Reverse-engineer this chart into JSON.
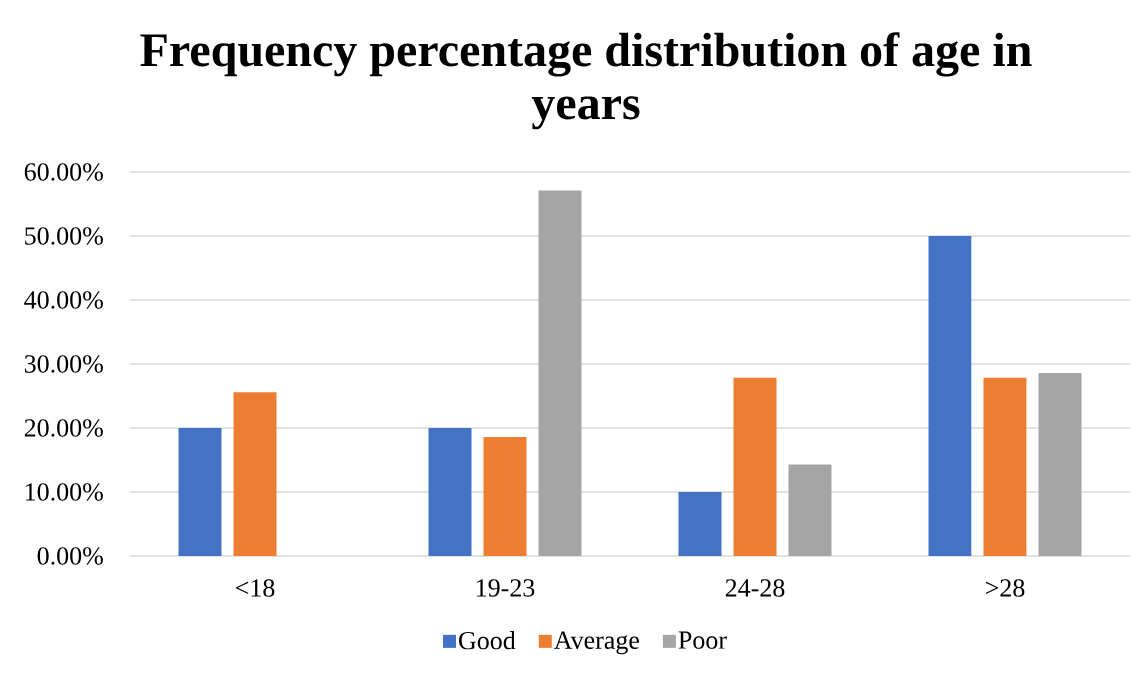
{
  "chart_data": {
    "type": "bar",
    "title": "Frequency percentage distribution of age in years",
    "categories": [
      "<18",
      "19-23",
      "24-28",
      ">28"
    ],
    "series": [
      {
        "name": "Good",
        "color": "#4472c4",
        "values": [
          20,
          20,
          10,
          50
        ]
      },
      {
        "name": "Average",
        "color": "#ed7d31",
        "values": [
          25.6,
          18.6,
          27.9,
          27.9
        ]
      },
      {
        "name": "Poor",
        "color": "#a5a5a5",
        "values": [
          0,
          57.1,
          14.3,
          28.6
        ]
      }
    ],
    "ylim": [
      0,
      60
    ],
    "yticks": [
      {
        "value": 0,
        "label": "0.00%"
      },
      {
        "value": 10,
        "label": "10.00%"
      },
      {
        "value": 20,
        "label": "20.00%"
      },
      {
        "value": 30,
        "label": "30.00%"
      },
      {
        "value": 40,
        "label": "40.00%"
      },
      {
        "value": 50,
        "label": "50.00%"
      },
      {
        "value": 60,
        "label": "60.00%"
      }
    ],
    "grid": "y",
    "legend": "bottom"
  }
}
